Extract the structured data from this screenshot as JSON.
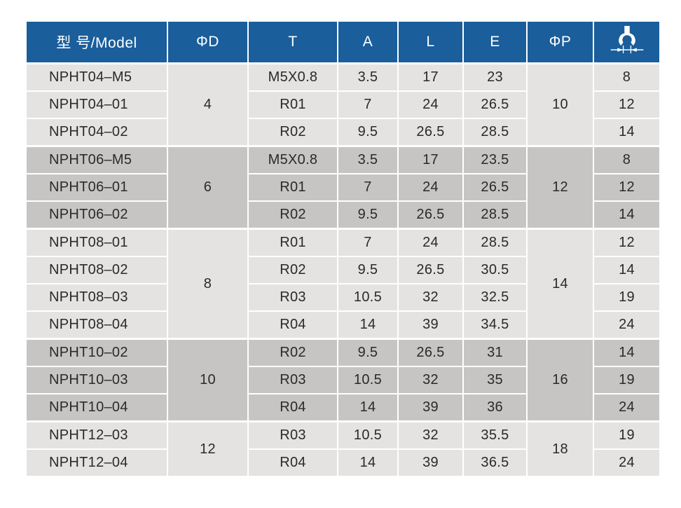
{
  "colors": {
    "header_bg": "#1a5e9b",
    "header_text": "#ffffff",
    "row_light": "#e4e3e1",
    "row_dark": "#c6c5c3",
    "body_text": "#2b2a28",
    "grid_line": "#ffffff",
    "page_bg": "#ffffff"
  },
  "table": {
    "columns": [
      {
        "key": "model",
        "label": "型 号/Model"
      },
      {
        "key": "d",
        "label": "ΦD"
      },
      {
        "key": "t",
        "label": "T"
      },
      {
        "key": "a",
        "label": "A"
      },
      {
        "key": "l",
        "label": "L"
      },
      {
        "key": "e",
        "label": "E"
      },
      {
        "key": "p",
        "label": "ΦP"
      },
      {
        "key": "wrench",
        "label": "",
        "icon": "wrench-size-icon"
      }
    ],
    "groups": [
      {
        "d": "4",
        "p": "10",
        "shade": "light",
        "rows": [
          {
            "model": "NPHT04–M5",
            "t": "M5X0.8",
            "a": "3.5",
            "l": "17",
            "e": "23",
            "w": "8"
          },
          {
            "model": "NPHT04–01",
            "t": "R01",
            "a": "7",
            "l": "24",
            "e": "26.5",
            "w": "12"
          },
          {
            "model": "NPHT04–02",
            "t": "R02",
            "a": "9.5",
            "l": "26.5",
            "e": "28.5",
            "w": "14"
          }
        ]
      },
      {
        "d": "6",
        "p": "12",
        "shade": "dark",
        "rows": [
          {
            "model": "NPHT06–M5",
            "t": "M5X0.8",
            "a": "3.5",
            "l": "17",
            "e": "23.5",
            "w": "8"
          },
          {
            "model": "NPHT06–01",
            "t": "R01",
            "a": "7",
            "l": "24",
            "e": "26.5",
            "w": "12"
          },
          {
            "model": "NPHT06–02",
            "t": "R02",
            "a": "9.5",
            "l": "26.5",
            "e": "28.5",
            "w": "14"
          }
        ]
      },
      {
        "d": "8",
        "p": "14",
        "shade": "light",
        "rows": [
          {
            "model": "NPHT08–01",
            "t": "R01",
            "a": "7",
            "l": "24",
            "e": "28.5",
            "w": "12"
          },
          {
            "model": "NPHT08–02",
            "t": "R02",
            "a": "9.5",
            "l": "26.5",
            "e": "30.5",
            "w": "14"
          },
          {
            "model": "NPHT08–03",
            "t": "R03",
            "a": "10.5",
            "l": "32",
            "e": "32.5",
            "w": "19"
          },
          {
            "model": "NPHT08–04",
            "t": "R04",
            "a": "14",
            "l": "39",
            "e": "34.5",
            "w": "24"
          }
        ]
      },
      {
        "d": "10",
        "p": "16",
        "shade": "dark",
        "rows": [
          {
            "model": "NPHT10–02",
            "t": "R02",
            "a": "9.5",
            "l": "26.5",
            "e": "31",
            "w": "14"
          },
          {
            "model": "NPHT10–03",
            "t": "R03",
            "a": "10.5",
            "l": "32",
            "e": "35",
            "w": "19"
          },
          {
            "model": "NPHT10–04",
            "t": "R04",
            "a": "14",
            "l": "39",
            "e": "36",
            "w": "24"
          }
        ]
      },
      {
        "d": "12",
        "p": "18",
        "shade": "light",
        "rows": [
          {
            "model": "NPHT12–03",
            "t": "R03",
            "a": "10.5",
            "l": "32",
            "e": "35.5",
            "w": "19"
          },
          {
            "model": "NPHT12–04",
            "t": "R04",
            "a": "14",
            "l": "39",
            "e": "36.5",
            "w": "24"
          }
        ]
      }
    ]
  }
}
